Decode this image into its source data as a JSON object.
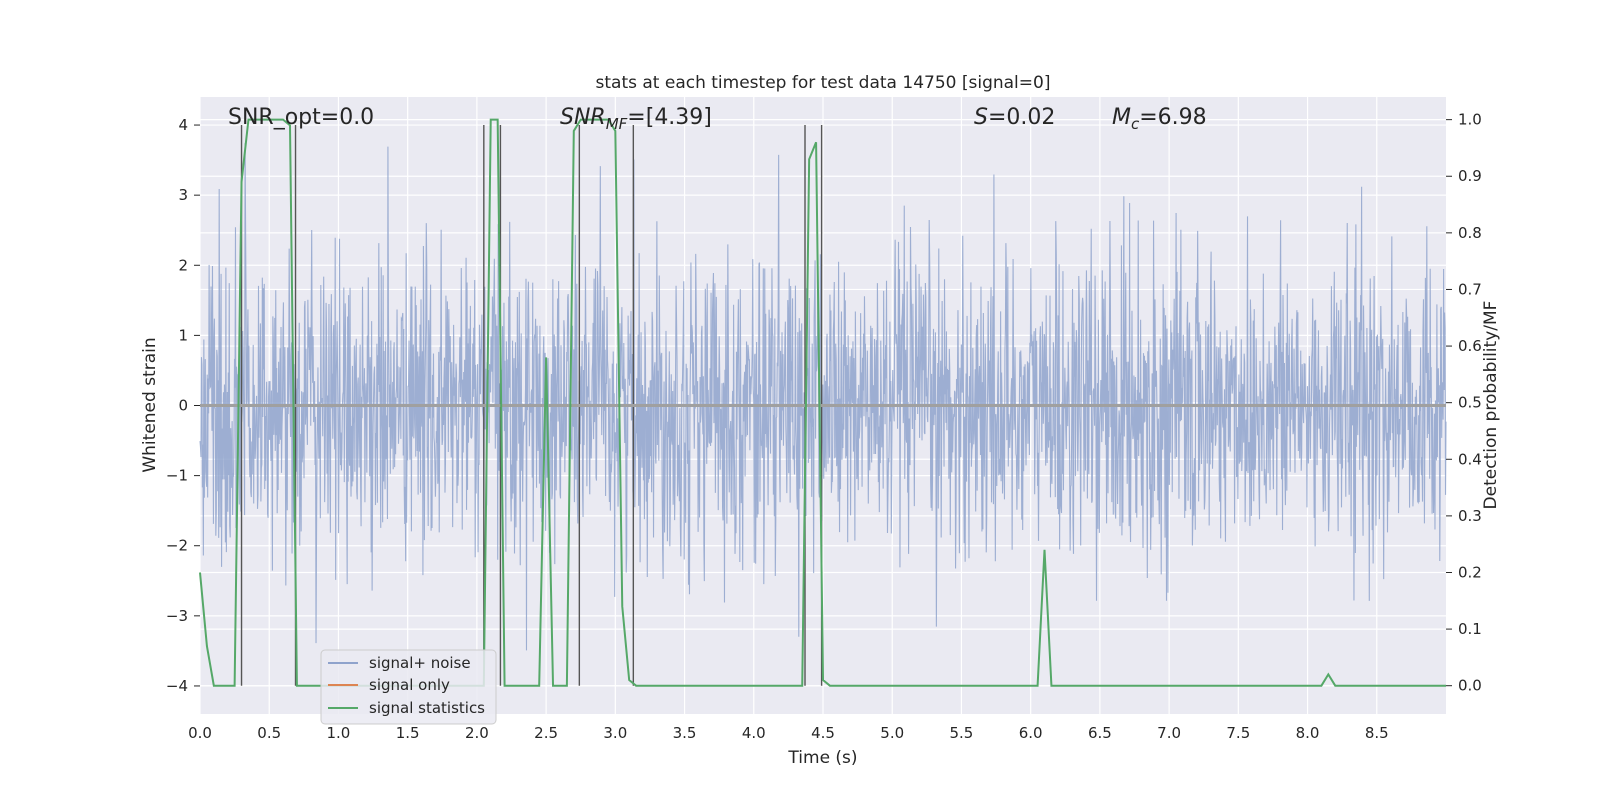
{
  "chart_data": {
    "type": "line",
    "title": "stats at each timestep for test data 14750 [signal=0]",
    "xlabel": "Time (s)",
    "ylabel": "Whitened strain",
    "ylabel_right": "Detection probability/MF",
    "xlim": [
      0.0,
      9.0
    ],
    "ylim": [
      -4.4,
      4.4
    ],
    "ylim_right": [
      -0.05,
      1.04
    ],
    "x_ticks": [
      "0.0",
      "0.5",
      "1.0",
      "1.5",
      "2.0",
      "2.5",
      "3.0",
      "3.5",
      "4.0",
      "4.5",
      "5.0",
      "5.5",
      "6.0",
      "6.5",
      "7.0",
      "7.5",
      "8.0",
      "8.5"
    ],
    "y_ticks": [
      "4",
      "3",
      "2",
      "1",
      "0",
      "−1",
      "−2",
      "−3",
      "−4"
    ],
    "y_ticks_right": [
      "1.0",
      "0.9",
      "0.8",
      "0.7",
      "0.6",
      "0.5",
      "0.4",
      "0.3",
      "0.2",
      "0.1",
      "0.0"
    ],
    "grid": true,
    "legend_position": "lower-left",
    "annotations": {
      "snr_opt": "SNR_opt=0.0",
      "snr_mf_prefix": "SNR",
      "snr_mf_sub": "MF",
      "snr_mf_value": "=[4.39]",
      "s_prefix": "S",
      "s_value": "=0.02",
      "mc_prefix": "M",
      "mc_sub": "c",
      "mc_value": "=6.98"
    },
    "series": [
      {
        "name": "signal+ noise",
        "color": "#8fa3cc",
        "description_kind": "noise_time_series"
      },
      {
        "name": "signal only",
        "color": "#dd8452",
        "x": [
          0.0,
          9.0
        ],
        "y": [
          0.0,
          0.0
        ]
      },
      {
        "name": "signal statistics",
        "color": "#55a868",
        "x": [
          0.0,
          0.05,
          0.1,
          0.15,
          0.2,
          0.25,
          0.3,
          0.35,
          0.4,
          0.45,
          0.5,
          0.55,
          0.6,
          0.65,
          0.7,
          0.75,
          0.8,
          0.85,
          0.9,
          0.95,
          1.0,
          1.1,
          1.2,
          1.3,
          1.4,
          1.5,
          1.6,
          1.7,
          1.8,
          1.9,
          2.0,
          2.05,
          2.1,
          2.15,
          2.2,
          2.25,
          2.3,
          2.35,
          2.4,
          2.45,
          2.5,
          2.55,
          2.6,
          2.65,
          2.7,
          2.75,
          2.8,
          2.85,
          2.9,
          2.95,
          3.0,
          3.05,
          3.1,
          3.15,
          3.2,
          3.25,
          3.3,
          3.35,
          3.4,
          3.5,
          3.6,
          3.65,
          3.7,
          3.75,
          3.8,
          3.85,
          3.9,
          4.0,
          4.1,
          4.2,
          4.3,
          4.35,
          4.4,
          4.45,
          4.5,
          4.55,
          4.6,
          4.7,
          4.8,
          5.0,
          5.5,
          6.0,
          6.05,
          6.1,
          6.15,
          6.2,
          6.3,
          6.5,
          7.0,
          7.5,
          8.0,
          8.1,
          8.15,
          8.2,
          8.25,
          8.3,
          8.5,
          9.0
        ],
        "y": [
          0.2,
          0.07,
          0.0,
          0.0,
          0.0,
          0.0,
          0.89,
          1.0,
          1.0,
          1.0,
          1.0,
          1.0,
          1.0,
          0.99,
          0.0,
          0.0,
          0.0,
          0.0,
          0.0,
          0.0,
          0.0,
          0.0,
          0.0,
          0.0,
          0.0,
          0.0,
          0.0,
          0.0,
          0.0,
          0.0,
          0.0,
          0.0,
          1.0,
          1.0,
          0.0,
          0.0,
          0.0,
          0.0,
          0.0,
          0.0,
          0.58,
          0.0,
          0.0,
          0.0,
          0.98,
          1.0,
          1.0,
          1.0,
          1.0,
          1.0,
          0.98,
          0.14,
          0.01,
          0.0,
          0.0,
          0.0,
          0.0,
          0.0,
          0.0,
          0.0,
          0.0,
          0.0,
          0.0,
          0.0,
          0.0,
          0.0,
          0.0,
          0.0,
          0.0,
          0.0,
          0.0,
          0.0,
          0.93,
          0.96,
          0.01,
          0.0,
          0.0,
          0.0,
          0.0,
          0.0,
          0.0,
          0.0,
          0.0,
          0.24,
          0.0,
          0.0,
          0.0,
          0.0,
          0.0,
          0.0,
          0.0,
          0.0,
          0.02,
          0.0,
          0.0,
          0.0,
          0.0,
          0.0
        ]
      }
    ],
    "vlines": [
      0.3,
      0.69,
      2.05,
      2.17,
      2.74,
      3.13,
      4.37,
      4.49
    ]
  }
}
